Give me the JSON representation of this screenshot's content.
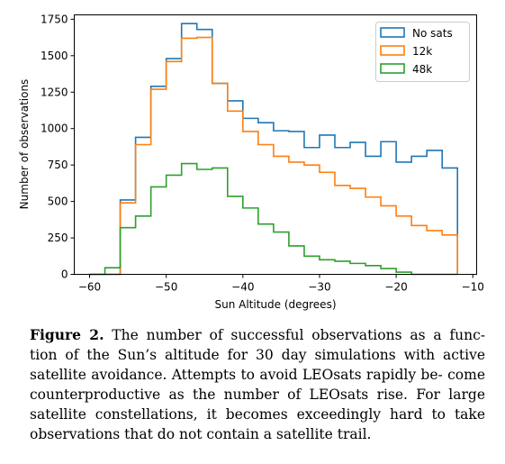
{
  "chart_data": {
    "type": "line",
    "style": "step histogram",
    "xlabel": "Sun Altitude (degrees)",
    "ylabel": "Number of observations",
    "xlim": [
      -62,
      -9.5
    ],
    "ylim": [
      0,
      1780
    ],
    "xticks": [
      -60,
      -50,
      -40,
      -30,
      -20,
      -10
    ],
    "xtick_labels": [
      "−60",
      "−50",
      "−40",
      "−30",
      "−20",
      "−10"
    ],
    "yticks": [
      0,
      250,
      500,
      750,
      1000,
      1250,
      1500,
      1750
    ],
    "ytick_labels": [
      "0",
      "250",
      "500",
      "750",
      "1000",
      "1250",
      "1500",
      "1750"
    ],
    "bin_edges": [
      -60,
      -58,
      -56,
      -54,
      -52,
      -50,
      -48,
      -46,
      -44,
      -42,
      -40,
      -38,
      -36,
      -34,
      -32,
      -30,
      -28,
      -26,
      -24,
      -22,
      -20,
      -18,
      -16,
      -14,
      -12
    ],
    "series": [
      {
        "name": "No sats",
        "color": "#1f77b4",
        "values": [
          0,
          0,
          510,
          940,
          1290,
          1480,
          1720,
          1680,
          1310,
          1190,
          1070,
          1040,
          985,
          980,
          870,
          955,
          870,
          905,
          810,
          910,
          770,
          810,
          850,
          730
        ]
      },
      {
        "name": "12k",
        "color": "#ff7f0e",
        "values": [
          0,
          0,
          490,
          890,
          1270,
          1460,
          1620,
          1625,
          1310,
          1120,
          980,
          890,
          810,
          770,
          750,
          700,
          610,
          590,
          530,
          470,
          400,
          335,
          300,
          270
        ]
      },
      {
        "name": "48k",
        "color": "#2ca02c",
        "values": [
          0,
          45,
          320,
          400,
          600,
          680,
          760,
          720,
          730,
          535,
          455,
          345,
          290,
          195,
          125,
          100,
          90,
          75,
          60,
          40,
          15,
          0,
          0,
          0
        ]
      }
    ],
    "legend_position": "top-right",
    "grid": false
  },
  "caption": {
    "label": "Figure 2.",
    "lines": [
      "The number of successful observations as a func-",
      "tion of the Sun’s altitude for 30 day simulations with active",
      "satellite avoidance. Attempts to avoid LEOsats rapidly be-",
      "come counterproductive as the number of LEOsats rise. For",
      "large satellite constellations, it becomes exceedingly hard to",
      "take observations that do not contain a satellite trail."
    ]
  }
}
